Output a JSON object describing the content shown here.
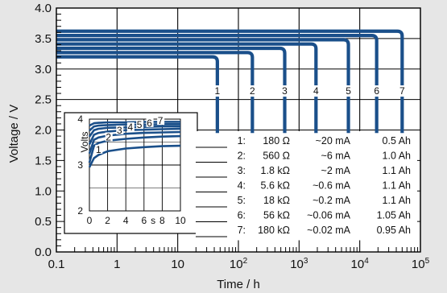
{
  "chart_data": {
    "type": "line",
    "xlabel": "Time / h",
    "ylabel": "Voltage / V",
    "xscale": "log",
    "xlim": [
      0.1,
      100000
    ],
    "ylim": [
      0.0,
      4.0
    ],
    "x_ticks": [
      {
        "value": 0.1,
        "label": "0.1",
        "sup": ""
      },
      {
        "value": 1,
        "label": "1",
        "sup": ""
      },
      {
        "value": 10,
        "label": "10",
        "sup": ""
      },
      {
        "value": 100,
        "label": "10",
        "sup": "2"
      },
      {
        "value": 1000,
        "label": "10",
        "sup": "3"
      },
      {
        "value": 10000,
        "label": "10",
        "sup": "4"
      },
      {
        "value": 100000,
        "label": "10",
        "sup": "5"
      }
    ],
    "y_ticks": [
      "0.0",
      "0.5",
      "1.0",
      "1.5",
      "2.0",
      "2.5",
      "3.0",
      "3.5",
      "4.0"
    ],
    "grid": true,
    "series": [
      {
        "label": "1",
        "plateau_v": 3.2,
        "end_h": 45
      },
      {
        "label": "2",
        "plateau_v": 3.27,
        "end_h": 170
      },
      {
        "label": "3",
        "plateau_v": 3.34,
        "end_h": 580
      },
      {
        "label": "4",
        "plateau_v": 3.41,
        "end_h": 1900
      },
      {
        "label": "5",
        "plateau_v": 3.48,
        "end_h": 6500
      },
      {
        "label": "6",
        "plateau_v": 3.55,
        "end_h": 19000
      },
      {
        "label": "7",
        "plateau_v": 3.62,
        "end_h": 50000
      }
    ],
    "table": [
      {
        "n": "1:",
        "load": "180 Ω",
        "current": "~20 mA",
        "capacity": "0.5 Ah"
      },
      {
        "n": "2:",
        "load": "560 Ω",
        "current": "~6 mA",
        "capacity": "1.0 Ah"
      },
      {
        "n": "3:",
        "load": "1.8 kΩ",
        "current": "~2 mA",
        "capacity": "1.1 Ah"
      },
      {
        "n": "4:",
        "load": "5.6 kΩ",
        "current": "~0.6 mA",
        "capacity": "1.1 Ah"
      },
      {
        "n": "5:",
        "load": "18 kΩ",
        "current": "~0.2 mA",
        "capacity": "1.1 Ah"
      },
      {
        "n": "6:",
        "load": "56 kΩ",
        "current": "~0.06 mA",
        "capacity": "1.05 Ah"
      },
      {
        "n": "7:",
        "load": "180 kΩ",
        "current": "~0.02 mA",
        "capacity": "0.95 Ah"
      }
    ],
    "inset": {
      "xlabel": "s",
      "ylabel": "Volts",
      "xlim": [
        0,
        10
      ],
      "ylim": [
        2,
        4
      ],
      "x_ticks": [
        "0",
        "2",
        "4",
        "6",
        "8",
        "10"
      ],
      "y_ticks": [
        "2",
        "3",
        "4"
      ],
      "series": [
        {
          "label": "1",
          "points": [
            [
              0,
              2.95
            ],
            [
              0.5,
              3.15
            ],
            [
              1,
              3.22
            ],
            [
              2,
              3.3
            ],
            [
              4,
              3.36
            ],
            [
              6,
              3.39
            ],
            [
              8,
              3.41
            ],
            [
              10,
              3.42
            ]
          ]
        },
        {
          "label": "2",
          "points": [
            [
              0,
              3.05
            ],
            [
              0.5,
              3.42
            ],
            [
              1,
              3.48
            ],
            [
              2,
              3.53
            ],
            [
              4,
              3.57
            ],
            [
              6,
              3.6
            ],
            [
              8,
              3.62
            ],
            [
              10,
              3.63
            ]
          ]
        },
        {
          "label": "3",
          "points": [
            [
              0,
              3.25
            ],
            [
              0.5,
              3.55
            ],
            [
              1,
              3.6
            ],
            [
              2,
              3.64
            ],
            [
              4,
              3.68
            ],
            [
              6,
              3.7
            ],
            [
              8,
              3.71
            ],
            [
              10,
              3.72
            ]
          ]
        },
        {
          "label": "4",
          "points": [
            [
              0,
              3.45
            ],
            [
              0.5,
              3.66
            ],
            [
              1,
              3.7
            ],
            [
              2,
              3.73
            ],
            [
              4,
              3.76
            ],
            [
              6,
              3.77
            ],
            [
              8,
              3.78
            ],
            [
              10,
              3.79
            ]
          ]
        },
        {
          "label": "5",
          "points": [
            [
              0,
              3.62
            ],
            [
              0.5,
              3.76
            ],
            [
              1,
              3.79
            ],
            [
              2,
              3.81
            ],
            [
              4,
              3.82
            ],
            [
              6,
              3.83
            ],
            [
              8,
              3.84
            ],
            [
              10,
              3.84
            ]
          ]
        },
        {
          "label": "6",
          "points": [
            [
              0,
              3.75
            ],
            [
              0.5,
              3.84
            ],
            [
              1,
              3.86
            ],
            [
              2,
              3.87
            ],
            [
              4,
              3.88
            ],
            [
              6,
              3.88
            ],
            [
              8,
              3.89
            ],
            [
              10,
              3.89
            ]
          ]
        },
        {
          "label": "7",
          "points": [
            [
              0,
              3.86
            ],
            [
              0.5,
              3.91
            ],
            [
              1,
              3.92
            ],
            [
              2,
              3.93
            ],
            [
              4,
              3.93
            ],
            [
              6,
              3.94
            ],
            [
              8,
              3.94
            ],
            [
              10,
              3.94
            ]
          ]
        }
      ]
    }
  }
}
